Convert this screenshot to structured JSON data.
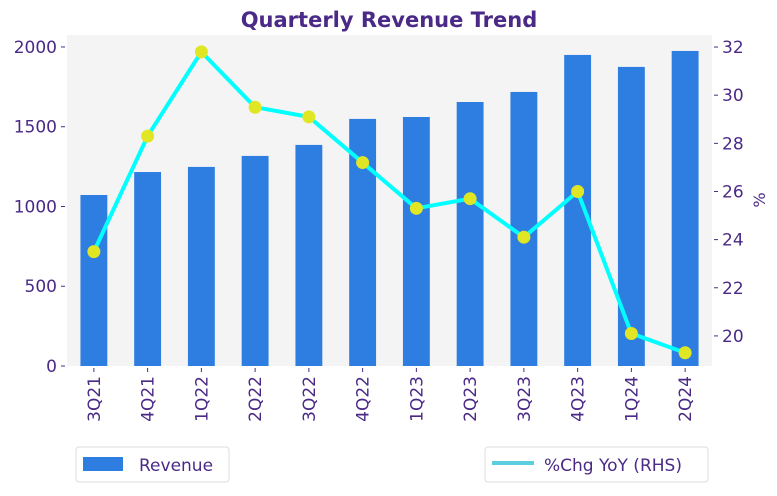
{
  "chart_data": {
    "type": "bar+line",
    "title": "Quarterly Revenue Trend",
    "categories": [
      "3Q21",
      "4Q21",
      "1Q22",
      "2Q22",
      "3Q22",
      "4Q22",
      "1Q23",
      "2Q23",
      "3Q23",
      "4Q23",
      "1Q24",
      "2Q24"
    ],
    "series": [
      {
        "name": "Revenue",
        "type": "bar",
        "axis": "left",
        "color": "#2e7de0",
        "values": [
          1072,
          1216,
          1248,
          1317,
          1386,
          1549,
          1561,
          1655,
          1718,
          1950,
          1875,
          1975
        ]
      },
      {
        "name": "%Chg YoY (RHS)",
        "type": "line",
        "axis": "right",
        "color": "#00ffff",
        "marker_color": "#e0e624",
        "legend_color": "#5bcfdf",
        "values": [
          23.5,
          28.3,
          31.8,
          29.5,
          29.1,
          27.2,
          25.3,
          25.7,
          24.1,
          26.0,
          20.1,
          19.3
        ]
      }
    ],
    "ylabel": "",
    "y2label": "%",
    "ylim": [
      0,
      2075
    ],
    "y2lim": [
      18.75,
      32.5
    ],
    "yticks": [
      0,
      500,
      1000,
      1500,
      2000
    ],
    "y2ticks": [
      20,
      22,
      24,
      26,
      28,
      30,
      32
    ],
    "grid": false,
    "plot_background": "#f4f4f4",
    "text_color": "#4a2a86",
    "legend_placement": "bottom"
  }
}
